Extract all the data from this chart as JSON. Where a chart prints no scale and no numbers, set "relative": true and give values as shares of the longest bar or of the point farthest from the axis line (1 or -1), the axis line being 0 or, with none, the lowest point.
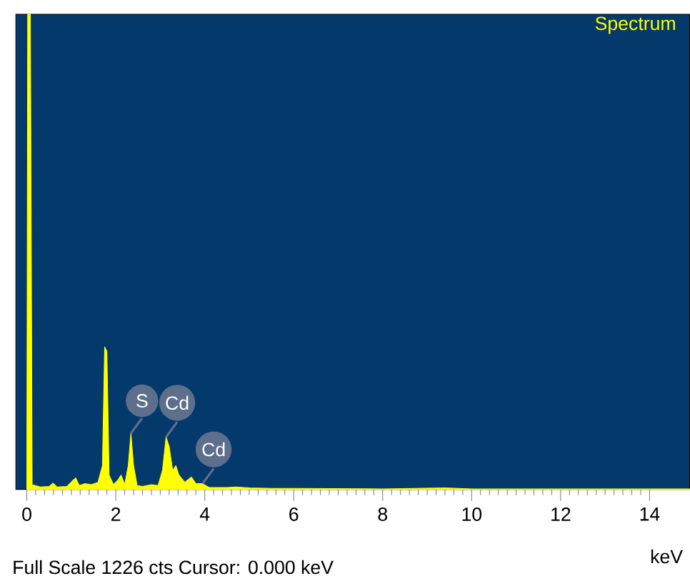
{
  "chart_data": {
    "type": "area",
    "title": "Spectrum",
    "xlabel": "keV",
    "relative": true,
    "color": "#ffff00",
    "x": [
      0.0,
      0.02,
      0.08,
      0.12,
      0.3,
      0.5,
      0.59,
      0.68,
      0.9,
      1.05,
      1.1,
      1.18,
      1.3,
      1.45,
      1.6,
      1.7,
      1.75,
      1.8,
      1.85,
      1.95,
      2.05,
      2.12,
      2.2,
      2.28,
      2.34,
      2.4,
      2.48,
      2.6,
      2.8,
      2.95,
      3.05,
      3.13,
      3.2,
      3.28,
      3.35,
      3.42,
      3.55,
      3.7,
      3.8,
      3.95,
      4.1,
      4.5,
      4.7,
      5.0,
      5.5,
      6.0,
      8.0,
      9.4,
      10.0,
      14.9
    ],
    "values": [
      0,
      1,
      1,
      0.01,
      0.005,
      0.006,
      0.013,
      0.005,
      0.006,
      0.02,
      0.024,
      0.008,
      0.012,
      0.01,
      0.015,
      0.05,
      0.3,
      0.29,
      0.03,
      0.01,
      0.02,
      0.03,
      0.01,
      0.05,
      0.118,
      0.05,
      0.008,
      0.006,
      0.01,
      0.008,
      0.04,
      0.11,
      0.09,
      0.04,
      0.05,
      0.03,
      0.015,
      0.026,
      0.012,
      0.012,
      0.004,
      0.004,
      0.005,
      0.003,
      0.002,
      0.002,
      0.001,
      0.003,
      0.001,
      0.001
    ],
    "xlim": [
      -0.25,
      14.9
    ],
    "xticks": [
      0,
      2,
      4,
      6,
      8,
      10,
      12,
      14
    ],
    "annotations": [
      {
        "text": "S",
        "x": 2.34,
        "y": 0.118
      },
      {
        "text": "Cd",
        "x": 3.13,
        "y": 0.11
      },
      {
        "text": "Cd",
        "x": 3.95,
        "y": 0.012
      },
      "Full Scale 1226 cts  Cursor: 0.000 keV"
    ]
  }
}
